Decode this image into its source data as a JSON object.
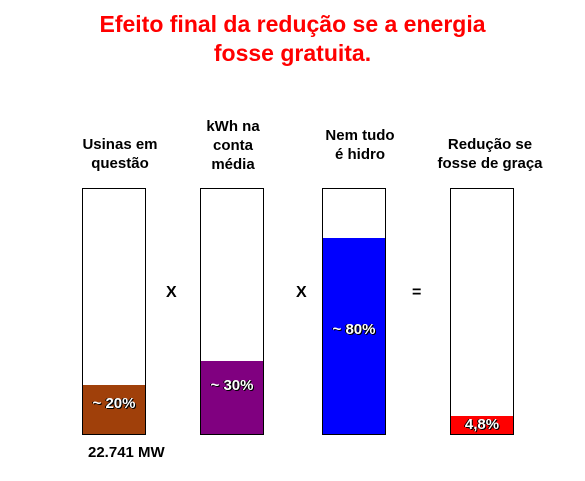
{
  "title": {
    "line1": "Efeito final da redução se a energia",
    "line2": "fosse gratuita."
  },
  "columns": [
    {
      "label": [
        "Usinas em",
        "questão"
      ],
      "value_label": "~ 20%",
      "fraction": 0.2,
      "color": "#a0400a"
    },
    {
      "label": [
        "kWh na",
        "conta",
        "média"
      ],
      "value_label": "~ 30%",
      "fraction": 0.3,
      "color": "#800080"
    },
    {
      "label": [
        "Nem tudo",
        "é hidro"
      ],
      "value_label": "~ 80%",
      "fraction": 0.8,
      "color": "#0000ff"
    },
    {
      "label": [
        "Redução se",
        "fosse de graça"
      ],
      "value_label": "4,8%",
      "fraction": 0.048,
      "color": "#ff0000"
    }
  ],
  "operators": [
    "X",
    "X",
    "="
  ],
  "footnote": "22.741 MW"
}
